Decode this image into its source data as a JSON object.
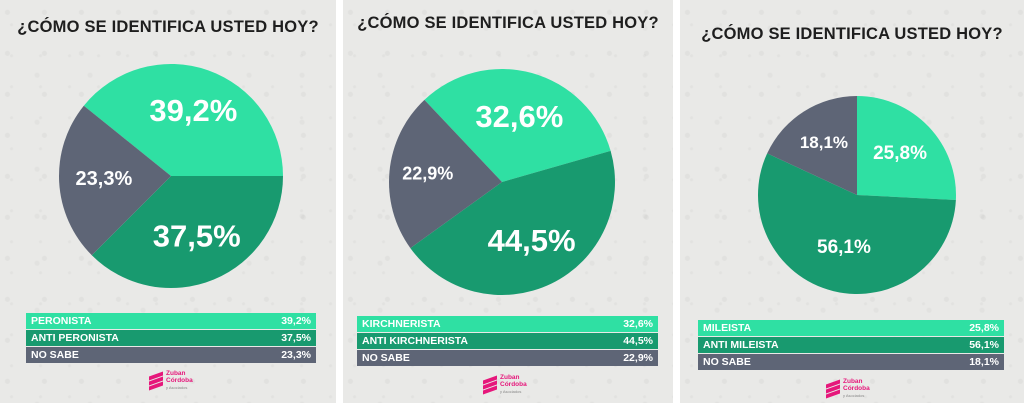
{
  "colors": {
    "green_light": "#2fe0a3",
    "green_dark": "#189a6f",
    "gray": "#5e6576",
    "logo": "#e6177b"
  },
  "logo": {
    "name": "Zuban Córdoba",
    "line1": "Zuban",
    "line2": "Córdoba",
    "tagline": "y Asociados"
  },
  "chart_data": [
    {
      "type": "pie",
      "title": "¿CÓMO SE IDENTIFICA USTED HOY?",
      "categories": [
        "PERONISTA",
        "ANTI PERONISTA",
        "NO SABE"
      ],
      "values": [
        39.2,
        37.5,
        23.3
      ],
      "labels": [
        "39,2%",
        "37,5%",
        "23,3%"
      ],
      "colors": [
        "#2fe0a3",
        "#189a6f",
        "#5e6576"
      ]
    },
    {
      "type": "pie",
      "title": "¿CÓMO SE IDENTIFICA USTED HOY?",
      "categories": [
        "KIRCHNERISTA",
        "ANTI KIRCHNERISTA",
        "NO SABE"
      ],
      "values": [
        32.6,
        44.5,
        22.9
      ],
      "labels": [
        "32,6%",
        "44,5%",
        "22,9%"
      ],
      "colors": [
        "#2fe0a3",
        "#189a6f",
        "#5e6576"
      ]
    },
    {
      "type": "pie",
      "title": "¿CÓMO SE IDENTIFICA USTED HOY?",
      "categories": [
        "MILEISTA",
        "ANTI MILEISTA",
        "NO SABE"
      ],
      "values": [
        25.8,
        56.1,
        18.1
      ],
      "labels": [
        "25,8%",
        "56,1%",
        "18,1%"
      ],
      "colors": [
        "#2fe0a3",
        "#189a6f",
        "#5e6576"
      ]
    }
  ]
}
